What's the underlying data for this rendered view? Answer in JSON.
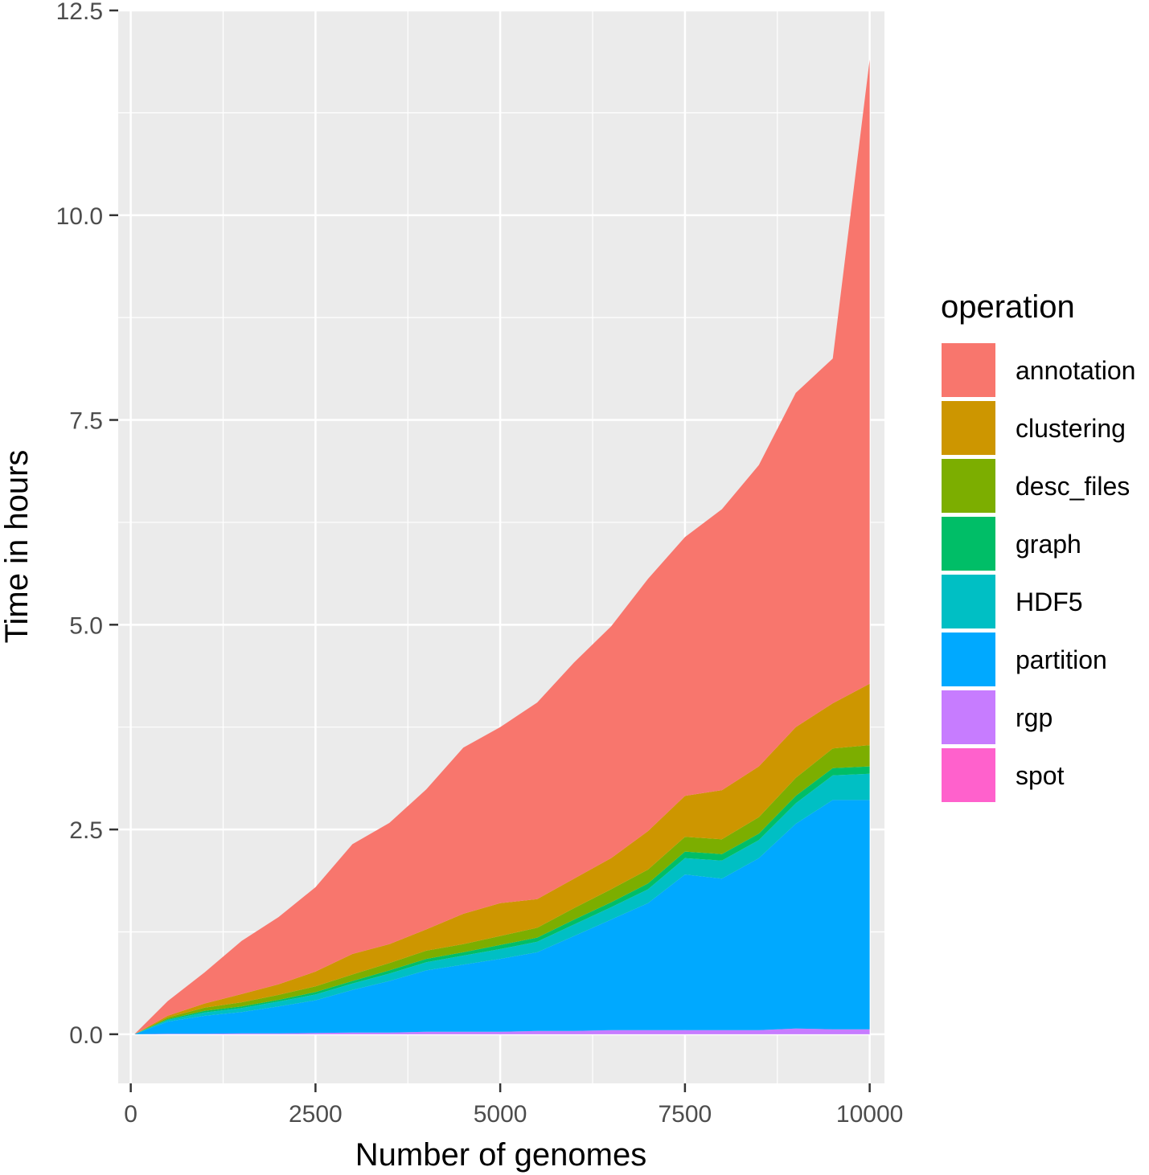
{
  "chart_data": {
    "type": "area",
    "stacked": true,
    "xlabel": "Number of genomes",
    "ylabel": "Time in hours",
    "xlim": [
      -170,
      10200
    ],
    "ylim": [
      -0.6,
      12.5
    ],
    "x_ticks": [
      0,
      2500,
      5000,
      7500,
      10000
    ],
    "x_tick_labels": [
      "0",
      "2500",
      "5000",
      "7500",
      "10000"
    ],
    "y_ticks": [
      0,
      2.5,
      5,
      7.5,
      10,
      12.5
    ],
    "y_tick_labels": [
      "0.0",
      "2.5",
      "5.0",
      "7.5",
      "10.0",
      "12.5"
    ],
    "x_minor_ticks": [
      1250,
      3750,
      6250,
      8750
    ],
    "y_minor_ticks": [
      1.25,
      3.75,
      6.25,
      8.75,
      11.25
    ],
    "grid": true,
    "legend": {
      "title": "operation",
      "position": "right"
    },
    "x": [
      50,
      500,
      1000,
      1500,
      2000,
      2500,
      3000,
      3500,
      4000,
      4500,
      5000,
      5500,
      6000,
      6500,
      7000,
      7500,
      8000,
      8500,
      9000,
      9500,
      10000
    ],
    "series": [
      {
        "name": "spot",
        "color": "#FF61CC",
        "values": [
          0,
          0,
          0,
          0,
          0,
          0,
          0,
          0,
          0,
          0,
          0,
          0,
          0,
          0,
          0,
          0,
          0,
          0,
          0,
          0,
          0
        ]
      },
      {
        "name": "rgp",
        "color": "#C77CFF",
        "values": [
          0,
          0.005,
          0.005,
          0.01,
          0.01,
          0.015,
          0.02,
          0.02,
          0.03,
          0.03,
          0.03,
          0.04,
          0.04,
          0.05,
          0.05,
          0.05,
          0.05,
          0.05,
          0.07,
          0.06,
          0.06
        ]
      },
      {
        "name": "partition",
        "color": "#00A9FF",
        "values": [
          0,
          0.15,
          0.22,
          0.26,
          0.33,
          0.4,
          0.52,
          0.63,
          0.75,
          0.82,
          0.89,
          0.96,
          1.16,
          1.35,
          1.55,
          1.9,
          1.85,
          2.1,
          2.5,
          2.8,
          2.8
        ]
      },
      {
        "name": "HDF5",
        "color": "#00BFC4",
        "values": [
          0,
          0.02,
          0.04,
          0.05,
          0.06,
          0.07,
          0.08,
          0.09,
          0.1,
          0.11,
          0.12,
          0.13,
          0.14,
          0.15,
          0.17,
          0.2,
          0.22,
          0.22,
          0.25,
          0.3,
          0.32
        ]
      },
      {
        "name": "graph",
        "color": "#00BE67",
        "values": [
          0,
          0.01,
          0.02,
          0.02,
          0.02,
          0.03,
          0.03,
          0.04,
          0.04,
          0.04,
          0.05,
          0.05,
          0.06,
          0.06,
          0.07,
          0.08,
          0.08,
          0.08,
          0.09,
          0.09,
          0.09
        ]
      },
      {
        "name": "desc_files",
        "color": "#7CAE00",
        "values": [
          0,
          0.02,
          0.04,
          0.05,
          0.06,
          0.07,
          0.08,
          0.09,
          0.1,
          0.1,
          0.11,
          0.12,
          0.14,
          0.16,
          0.17,
          0.18,
          0.18,
          0.2,
          0.22,
          0.24,
          0.26
        ]
      },
      {
        "name": "clustering",
        "color": "#CD9600",
        "values": [
          0,
          0.02,
          0.05,
          0.1,
          0.13,
          0.18,
          0.25,
          0.23,
          0.26,
          0.37,
          0.4,
          0.35,
          0.36,
          0.38,
          0.47,
          0.5,
          0.6,
          0.62,
          0.62,
          0.55,
          0.75
        ]
      },
      {
        "name": "annotation",
        "color": "#F8766D",
        "values": [
          0,
          0.18,
          0.38,
          0.65,
          0.82,
          1.03,
          1.34,
          1.48,
          1.71,
          2.03,
          2.15,
          2.4,
          2.64,
          2.83,
          3.08,
          3.16,
          3.43,
          3.68,
          4.08,
          4.21,
          7.62
        ]
      }
    ]
  }
}
